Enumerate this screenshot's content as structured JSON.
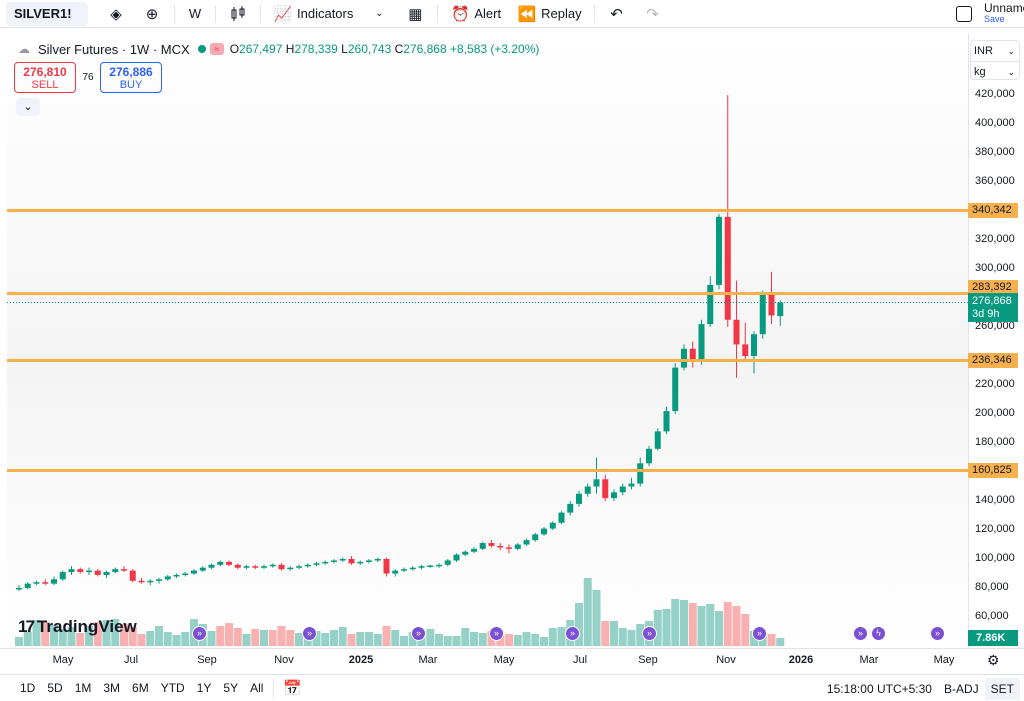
{
  "topbar": {
    "symbol": "SILVER1!",
    "interval": "W",
    "indicators_label": "Indicators",
    "alert_label": "Alert",
    "replay_label": "Replay",
    "layout_name": "Unnamed",
    "save_label": "Save"
  },
  "legend": {
    "title": "Silver Futures · 1W · MCX",
    "open_label": "O",
    "open": "267,497",
    "high_label": "H",
    "high": "278,339",
    "low_label": "L",
    "low": "260,743",
    "close_label": "C",
    "close": "276,868",
    "change": "+8,583 (+3.20%)"
  },
  "trade": {
    "sell_price": "276,810",
    "sell_label": "SELL",
    "spread": "76",
    "buy_price": "276,886",
    "buy_label": "BUY"
  },
  "units": {
    "currency": "INR",
    "unit": "kg"
  },
  "price_scale": {
    "ticks": [
      "420,000",
      "400,000",
      "380,000",
      "360,000",
      "320,000",
      "300,000",
      "260,000",
      "220,000",
      "200,000",
      "180,000",
      "140,000",
      "120,000",
      "100,000",
      "80,000",
      "60,000"
    ]
  },
  "levels": [
    {
      "value": "340,342"
    },
    {
      "value": "283,392"
    },
    {
      "value": "236,346"
    },
    {
      "value": "160,825"
    }
  ],
  "current": {
    "price": "276,868",
    "countdown": "3d 9h"
  },
  "volume_label": "7.86K",
  "brand": "TradingView",
  "x_axis": {
    "labels": [
      {
        "text": "May",
        "bold": false
      },
      {
        "text": "Jul",
        "bold": false
      },
      {
        "text": "Sep",
        "bold": false
      },
      {
        "text": "Nov",
        "bold": false
      },
      {
        "text": "2025",
        "bold": true
      },
      {
        "text": "Mar",
        "bold": false
      },
      {
        "text": "May",
        "bold": false
      },
      {
        "text": "Jul",
        "bold": false
      },
      {
        "text": "Sep",
        "bold": false
      },
      {
        "text": "Nov",
        "bold": false
      },
      {
        "text": "2026",
        "bold": true
      },
      {
        "text": "Mar",
        "bold": false
      },
      {
        "text": "May",
        "bold": false
      }
    ]
  },
  "bottombar": {
    "ranges": [
      "1D",
      "5D",
      "1M",
      "3M",
      "6M",
      "YTD",
      "1Y",
      "5Y",
      "All"
    ],
    "clock": "15:18:00 UTC+5:30",
    "adjust": "B-ADJ",
    "session": "SET"
  },
  "colors": {
    "up": "#089981",
    "down": "#f23645",
    "level": "#f7b04e"
  },
  "chart_data": {
    "type": "candlestick",
    "title": "Silver Futures · 1W · MCX",
    "xlabel": "",
    "ylabel": "",
    "ylim": [
      46000,
      430000
    ],
    "grid": false,
    "candles": [
      [
        79000,
        82000,
        78000,
        80000
      ],
      [
        80000,
        84000,
        79000,
        83000
      ],
      [
        83000,
        85000,
        82000,
        84000
      ],
      [
        84000,
        86000,
        82000,
        83000
      ],
      [
        83000,
        88000,
        82000,
        86000
      ],
      [
        86000,
        92000,
        85000,
        91000
      ],
      [
        91000,
        95000,
        89000,
        93000
      ],
      [
        93000,
        94000,
        90000,
        91000
      ],
      [
        91000,
        94000,
        89000,
        92000
      ],
      [
        92000,
        93000,
        88000,
        89000
      ],
      [
        89000,
        92000,
        87000,
        91000
      ],
      [
        91000,
        94000,
        90000,
        93000
      ],
      [
        93000,
        95000,
        91000,
        92000
      ],
      [
        92000,
        93000,
        84000,
        85000
      ],
      [
        85000,
        87000,
        83000,
        84000
      ],
      [
        84000,
        86000,
        82000,
        85000
      ],
      [
        85000,
        87000,
        83000,
        86000
      ],
      [
        86000,
        89000,
        85000,
        88000
      ],
      [
        88000,
        90000,
        87000,
        89000
      ],
      [
        89000,
        91000,
        88000,
        90000
      ],
      [
        90000,
        93000,
        89000,
        92000
      ],
      [
        92000,
        95000,
        91000,
        94000
      ],
      [
        94000,
        97000,
        93000,
        96000
      ],
      [
        96000,
        99000,
        95000,
        98000
      ],
      [
        98000,
        99000,
        95000,
        96000
      ],
      [
        96000,
        97000,
        93000,
        94000
      ],
      [
        94000,
        96000,
        93000,
        95000
      ],
      [
        95000,
        96000,
        93000,
        94000
      ],
      [
        94000,
        96000,
        93000,
        95000
      ],
      [
        95000,
        97000,
        94000,
        96000
      ],
      [
        96000,
        97000,
        92000,
        93000
      ],
      [
        93000,
        95000,
        92000,
        94000
      ],
      [
        94000,
        96000,
        93000,
        95000
      ],
      [
        95000,
        97000,
        94000,
        96000
      ],
      [
        96000,
        98000,
        95000,
        97000
      ],
      [
        97000,
        99000,
        96000,
        98000
      ],
      [
        98000,
        100000,
        97000,
        99000
      ],
      [
        99000,
        101000,
        98000,
        100000
      ],
      [
        100000,
        102000,
        96000,
        97000
      ],
      [
        97000,
        99000,
        96000,
        98000
      ],
      [
        98000,
        100000,
        97000,
        99000
      ],
      [
        99000,
        101000,
        98000,
        100000
      ],
      [
        100000,
        101000,
        88000,
        90000
      ],
      [
        90000,
        93000,
        88000,
        92000
      ],
      [
        92000,
        94000,
        91000,
        93000
      ],
      [
        93000,
        95000,
        92000,
        94000
      ],
      [
        94000,
        96000,
        93000,
        95000
      ],
      [
        95000,
        96000,
        94000,
        95500
      ],
      [
        95500,
        97000,
        94000,
        96000
      ],
      [
        96000,
        100000,
        95000,
        99000
      ],
      [
        99000,
        104000,
        98000,
        103000
      ],
      [
        103000,
        106000,
        102000,
        105000
      ],
      [
        105000,
        108000,
        104000,
        107000
      ],
      [
        107000,
        112000,
        106000,
        111000
      ],
      [
        111000,
        113000,
        108000,
        109000
      ],
      [
        109000,
        111000,
        106000,
        108000
      ],
      [
        108000,
        110000,
        104000,
        107000
      ],
      [
        107000,
        111000,
        106000,
        110000
      ],
      [
        110000,
        114000,
        109000,
        113000
      ],
      [
        113000,
        118000,
        112000,
        117000
      ],
      [
        117000,
        122000,
        116000,
        121000
      ],
      [
        121000,
        126000,
        120000,
        125000
      ],
      [
        125000,
        133000,
        124000,
        132000
      ],
      [
        132000,
        140000,
        130000,
        138000
      ],
      [
        138000,
        147000,
        136000,
        145000
      ],
      [
        145000,
        152000,
        143000,
        150000
      ],
      [
        150000,
        170000,
        145000,
        155000
      ],
      [
        155000,
        158000,
        140000,
        142000
      ],
      [
        142000,
        148000,
        140000,
        146000
      ],
      [
        146000,
        152000,
        144000,
        150000
      ],
      [
        150000,
        156000,
        148000,
        152000
      ],
      [
        152000,
        170000,
        150000,
        166000
      ],
      [
        166000,
        178000,
        164000,
        176000
      ],
      [
        176000,
        190000,
        175000,
        188000
      ],
      [
        188000,
        205000,
        186000,
        202000
      ],
      [
        202000,
        235000,
        200000,
        232000
      ],
      [
        232000,
        248000,
        230000,
        245000
      ],
      [
        245000,
        250000,
        232000,
        236000
      ],
      [
        236000,
        265000,
        234000,
        262000
      ],
      [
        262000,
        295000,
        260000,
        289000
      ],
      [
        289000,
        338000,
        286000,
        336000
      ],
      [
        336000,
        420000,
        260000,
        265000
      ],
      [
        265000,
        292000,
        225000,
        248000
      ],
      [
        248000,
        263000,
        236000,
        240000
      ],
      [
        240000,
        257000,
        228000,
        255000
      ],
      [
        255000,
        285000,
        252000,
        283000
      ],
      [
        283000,
        298000,
        262000,
        268000
      ],
      [
        267497,
        278339,
        260743,
        276868
      ]
    ],
    "volume": [
      [
        9,
        1
      ],
      [
        14,
        1
      ],
      [
        26,
        1
      ],
      [
        24,
        1
      ],
      [
        21,
        1
      ],
      [
        17,
        1
      ],
      [
        19,
        1
      ],
      [
        13,
        1
      ],
      [
        20,
        1
      ],
      [
        24,
        1
      ],
      [
        26,
        1
      ],
      [
        27,
        1
      ],
      [
        22,
        1
      ],
      [
        19,
        1
      ],
      [
        12,
        1
      ],
      [
        15,
        1
      ],
      [
        20,
        1
      ],
      [
        14,
        1
      ],
      [
        11,
        1
      ],
      [
        14,
        1
      ],
      [
        27,
        1
      ],
      [
        22,
        1
      ],
      [
        15,
        1
      ],
      [
        20,
        0
      ],
      [
        23,
        1
      ],
      [
        18,
        1
      ],
      [
        12,
        1
      ],
      [
        17,
        1
      ],
      [
        16,
        1
      ],
      [
        16,
        0
      ],
      [
        20,
        1
      ],
      [
        16,
        0
      ],
      [
        13,
        1
      ],
      [
        11,
        1
      ],
      [
        15,
        1
      ],
      [
        13,
        1
      ],
      [
        16,
        1
      ],
      [
        19,
        1
      ],
      [
        12,
        1
      ],
      [
        14,
        1
      ],
      [
        14,
        1
      ],
      [
        12,
        1
      ],
      [
        20,
        1
      ],
      [
        16,
        1
      ],
      [
        10,
        1
      ],
      [
        14,
        1
      ],
      [
        12,
        1
      ],
      [
        17,
        1
      ],
      [
        12,
        1
      ],
      [
        10,
        1
      ],
      [
        10,
        1
      ],
      [
        18,
        1
      ],
      [
        14,
        1
      ],
      [
        13,
        1
      ],
      [
        15,
        1
      ],
      [
        15,
        1
      ],
      [
        12,
        1
      ],
      [
        11,
        1
      ],
      [
        14,
        1
      ],
      [
        12,
        1
      ],
      [
        9,
        1
      ],
      [
        18,
        1
      ],
      [
        19,
        1
      ],
      [
        26,
        1
      ],
      [
        43,
        1
      ],
      [
        68,
        1
      ],
      [
        56,
        1
      ],
      [
        25,
        1
      ],
      [
        25,
        1
      ],
      [
        18,
        1
      ],
      [
        16,
        1
      ],
      [
        22,
        1
      ],
      [
        25,
        1
      ],
      [
        36,
        1
      ],
      [
        37,
        1
      ],
      [
        47,
        1
      ],
      [
        46,
        1
      ],
      [
        43,
        1
      ],
      [
        40,
        1
      ],
      [
        42,
        1
      ],
      [
        35,
        1
      ],
      [
        44,
        1
      ],
      [
        40,
        1
      ],
      [
        32,
        1
      ],
      [
        15,
        1
      ],
      [
        14,
        1
      ],
      [
        12,
        1
      ],
      [
        8,
        1
      ]
    ]
  }
}
